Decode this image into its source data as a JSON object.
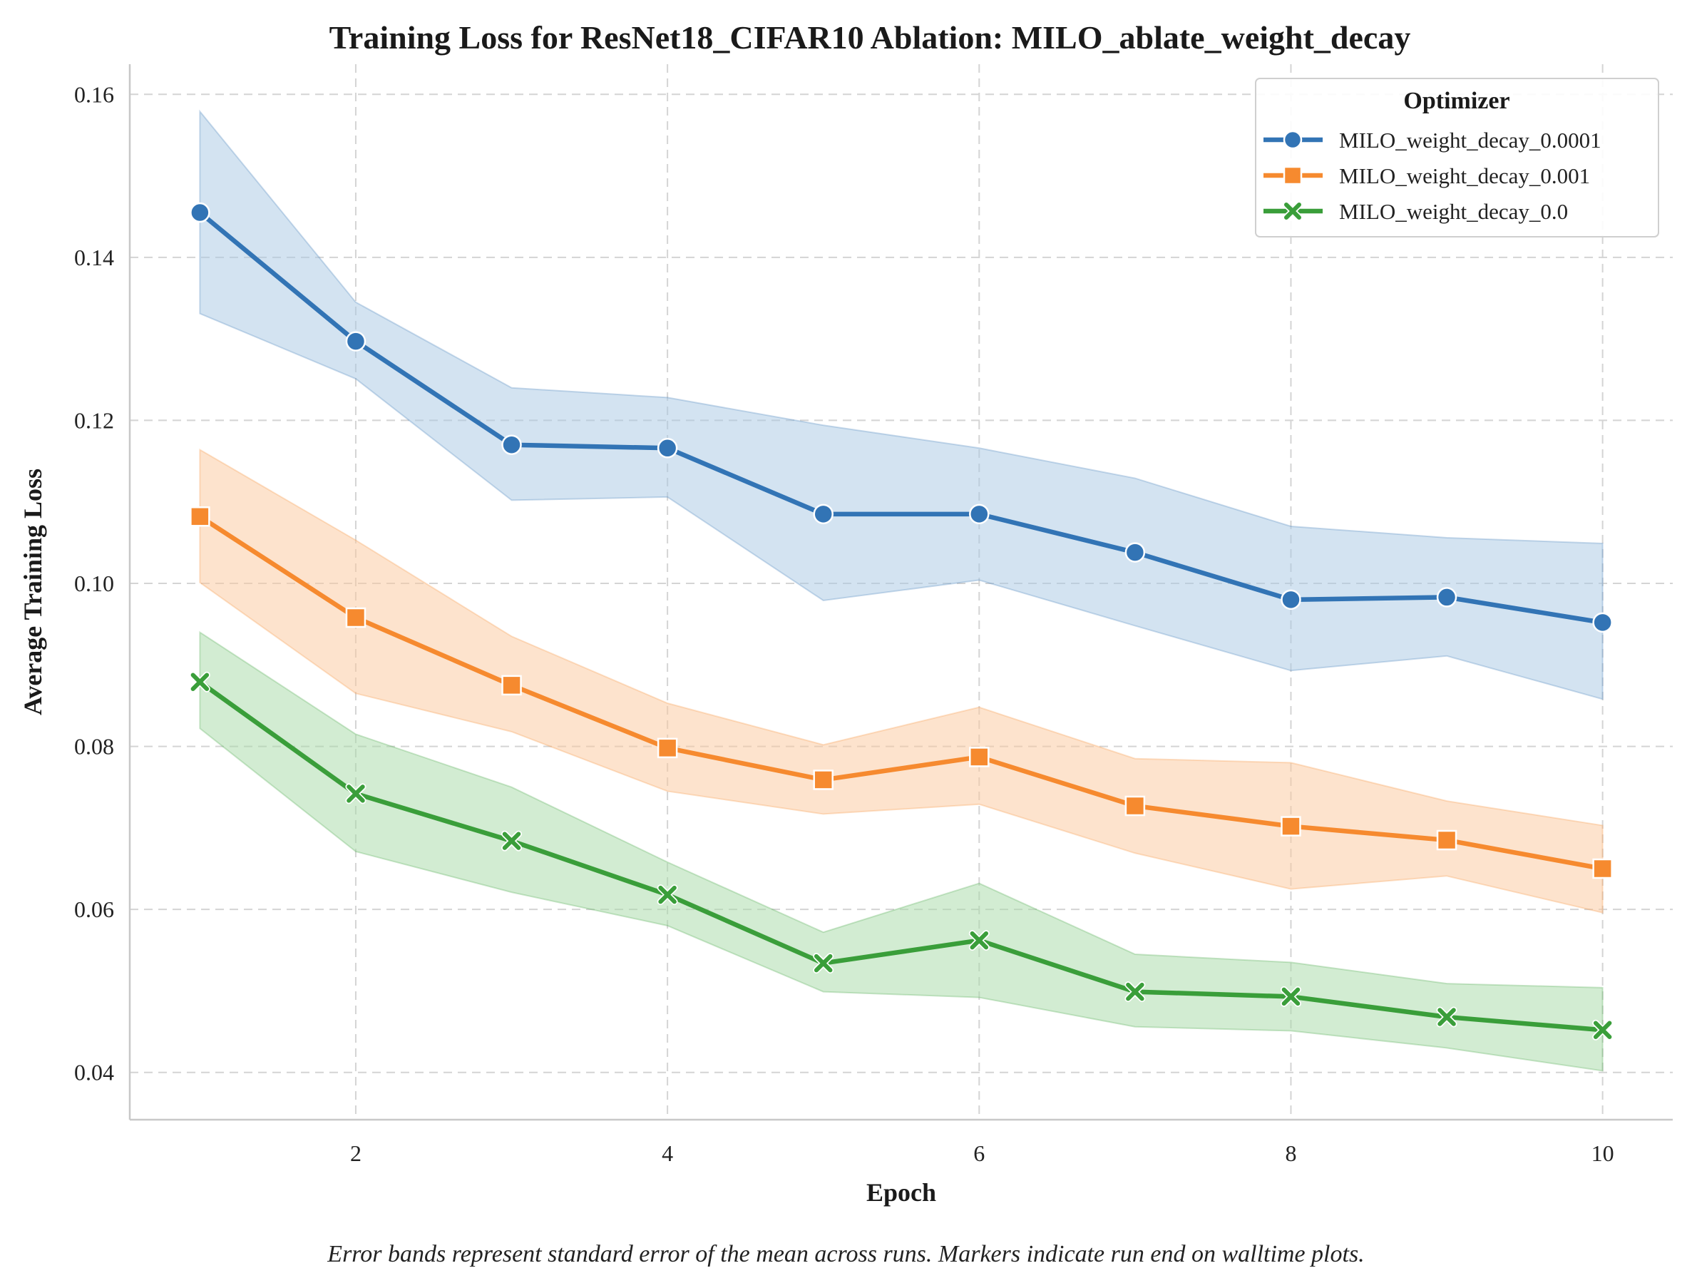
{
  "chart_data": {
    "type": "line",
    "title": "Training Loss for ResNet18_CIFAR10 Ablation: MILO_ablate_weight_decay",
    "xlabel": "Epoch",
    "ylabel": "Average Training Loss",
    "xlim": [
      0.55,
      10.45
    ],
    "ylim": [
      0.0342,
      0.1637
    ],
    "xticks": [
      2,
      4,
      6,
      8,
      10
    ],
    "yticks": [
      0.04,
      0.06,
      0.08,
      0.1,
      0.12,
      0.14,
      0.16
    ],
    "ytick_labels": [
      "0.04",
      "0.06",
      "0.08",
      "0.10",
      "0.12",
      "0.14",
      "0.16"
    ],
    "grid": true,
    "legend": {
      "title": "Optimizer",
      "placement": "top-right"
    },
    "x": [
      1,
      2,
      3,
      4,
      5,
      6,
      7,
      8,
      9,
      10
    ],
    "series": [
      {
        "name": "MILO_weight_decay_0.0001",
        "color": "#3274b5",
        "band_color": "#a7c8e3",
        "marker": "circle",
        "values": [
          0.1455,
          0.1297,
          0.117,
          0.1166,
          0.1085,
          0.1085,
          0.1038,
          0.098,
          0.0983,
          0.0952
        ],
        "lower": [
          0.1331,
          0.1251,
          0.1102,
          0.1106,
          0.0979,
          0.1004,
          0.0948,
          0.0893,
          0.0911,
          0.0858
        ],
        "upper": [
          0.1579,
          0.1345,
          0.124,
          0.1228,
          0.1194,
          0.1166,
          0.1129,
          0.107,
          0.1056,
          0.1049
        ]
      },
      {
        "name": "MILO_weight_decay_0.001",
        "color": "#f68a2f",
        "band_color": "#fcc79b",
        "marker": "square",
        "values": [
          0.1082,
          0.0958,
          0.0875,
          0.0798,
          0.0759,
          0.0787,
          0.0727,
          0.0702,
          0.0685,
          0.065
        ],
        "lower": [
          0.1001,
          0.0865,
          0.0818,
          0.0745,
          0.0717,
          0.0729,
          0.0669,
          0.0625,
          0.0641,
          0.0596
        ],
        "upper": [
          0.1164,
          0.1053,
          0.0935,
          0.0853,
          0.0802,
          0.0848,
          0.0785,
          0.078,
          0.0733,
          0.0703
        ]
      },
      {
        "name": "MILO_weight_decay_0.0",
        "color": "#3a9e3a",
        "band_color": "#a6d9a6",
        "marker": "x",
        "values": [
          0.0879,
          0.0742,
          0.0684,
          0.0618,
          0.0534,
          0.0562,
          0.0499,
          0.0493,
          0.0468,
          0.0452
        ],
        "lower": [
          0.0822,
          0.0671,
          0.0621,
          0.058,
          0.0499,
          0.0492,
          0.0456,
          0.0451,
          0.043,
          0.0402
        ],
        "upper": [
          0.094,
          0.0815,
          0.075,
          0.0658,
          0.0572,
          0.0632,
          0.0545,
          0.0535,
          0.0509,
          0.0504
        ]
      }
    ],
    "caption": "Error bands represent standard error of the mean across runs. Markers indicate run end on walltime plots."
  }
}
